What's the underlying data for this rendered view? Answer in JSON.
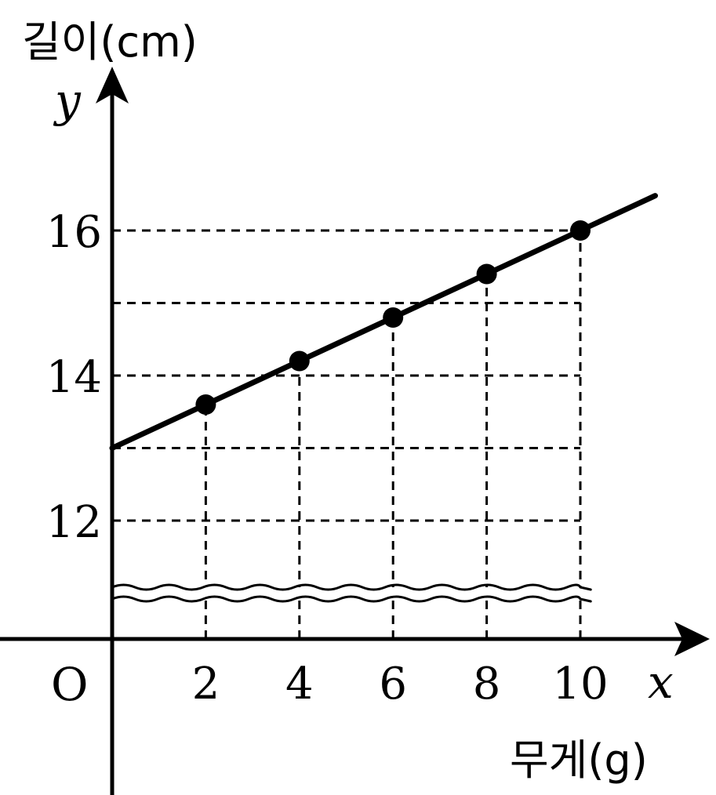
{
  "chart_data": {
    "type": "line",
    "ylabel_text": "길이(cm)",
    "xlabel_text": "무게(g)",
    "x_axis_symbol": "x",
    "y_axis_symbol": "y",
    "origin_label": "O",
    "x_ticks": [
      2,
      4,
      6,
      8,
      10
    ],
    "x_tick_labels": [
      "2",
      "4",
      "6",
      "8",
      "10"
    ],
    "y_ticks": [
      12,
      14,
      16
    ],
    "y_tick_labels": [
      "12",
      "14",
      "16"
    ],
    "y_axis_break": true,
    "dashed_levels_y": [
      12,
      13,
      14,
      15,
      16
    ],
    "line": {
      "x_start": 0,
      "y_start": 13,
      "x_end": 11.6,
      "y_end": 16.48
    },
    "series": [
      {
        "x": [
          2,
          4,
          6,
          8,
          10
        ],
        "y": [
          13.6,
          14.2,
          14.8,
          15.4,
          16
        ]
      }
    ]
  }
}
